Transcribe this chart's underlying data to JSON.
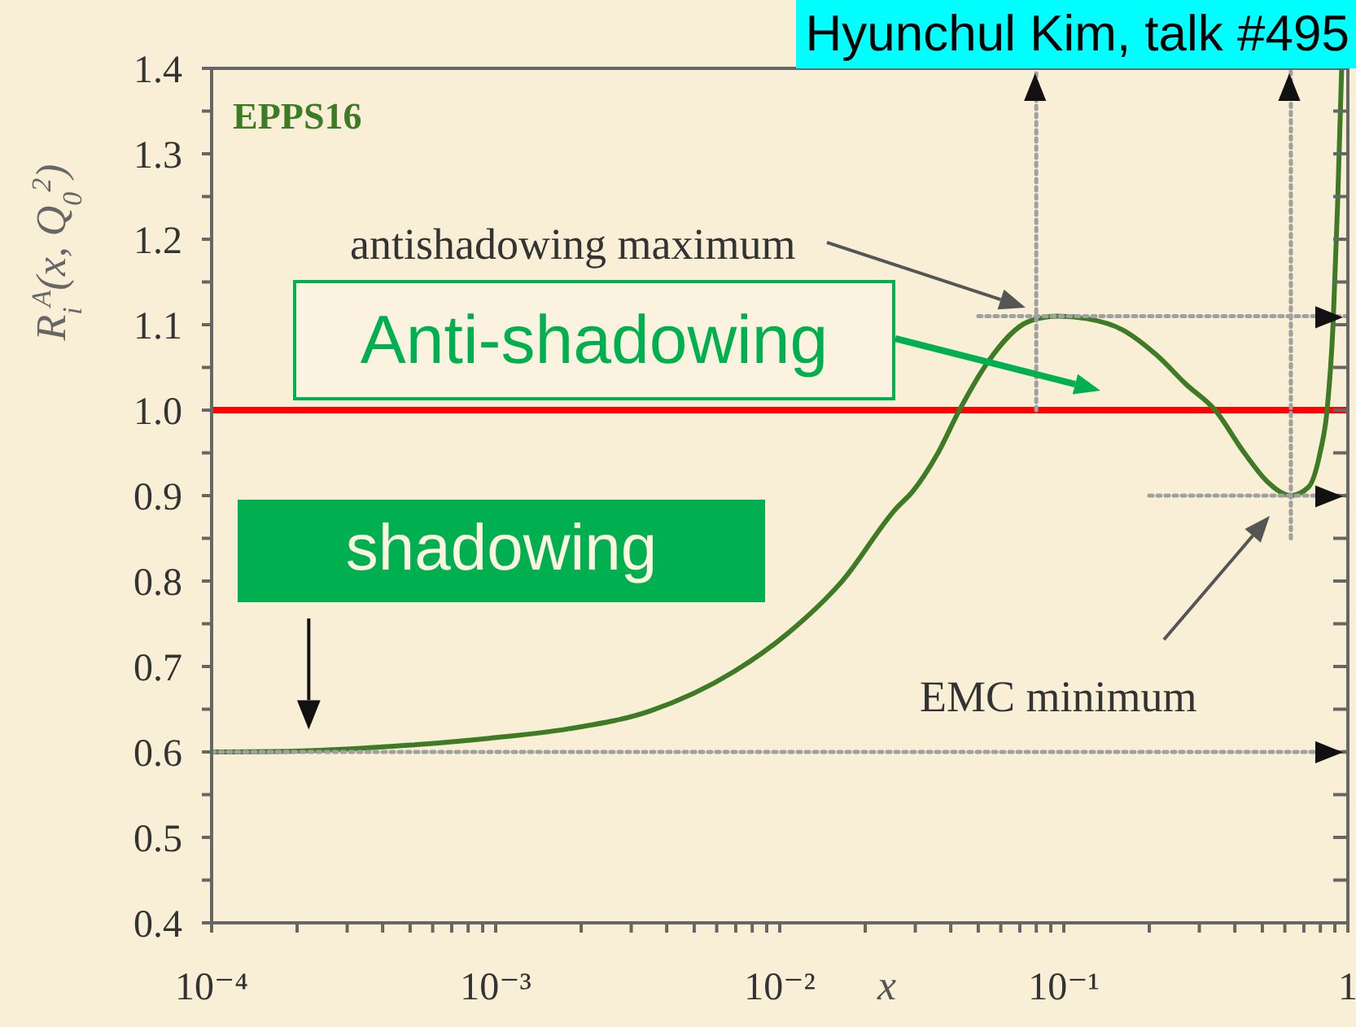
{
  "chart_data": {
    "type": "line",
    "xlabel": "x",
    "ylabel": "R$_{i}$$^{A}$(x, Q$_{0}$$^{2}$)",
    "xlim": [
      0.0001,
      1
    ],
    "ylim": [
      0.4,
      1.4
    ],
    "log": "x",
    "xticks": [
      {
        "value": 0.0001,
        "label": "10⁻⁴"
      },
      {
        "value": 0.0002,
        "label": null
      },
      {
        "value": 0.0003,
        "label": null
      },
      {
        "value": 0.0004,
        "label": null
      },
      {
        "value": 0.0005,
        "label": null
      },
      {
        "value": 0.0006,
        "label": null
      },
      {
        "value": 0.0007,
        "label": null
      },
      {
        "value": 0.0008,
        "label": null
      },
      {
        "value": 0.0009,
        "label": null
      },
      {
        "value": 0.001,
        "label": "10⁻³"
      },
      {
        "value": 0.002,
        "label": null
      },
      {
        "value": 0.003,
        "label": null
      },
      {
        "value": 0.004,
        "label": null
      },
      {
        "value": 0.005,
        "label": null
      },
      {
        "value": 0.006,
        "label": null
      },
      {
        "value": 0.007,
        "label": null
      },
      {
        "value": 0.008,
        "label": null
      },
      {
        "value": 0.009,
        "label": null
      },
      {
        "value": 0.01,
        "label": "10⁻²"
      },
      {
        "value": 0.02,
        "label": null
      },
      {
        "value": 0.03,
        "label": null
      },
      {
        "value": 0.04,
        "label": null
      },
      {
        "value": 0.05,
        "label": null
      },
      {
        "value": 0.06,
        "label": null
      },
      {
        "value": 0.07,
        "label": null
      },
      {
        "value": 0.08,
        "label": null
      },
      {
        "value": 0.09,
        "label": null
      },
      {
        "value": 0.1,
        "label": "10⁻¹"
      },
      {
        "value": 0.2,
        "label": null
      },
      {
        "value": 0.3,
        "label": null
      },
      {
        "value": 0.4,
        "label": null
      },
      {
        "value": 0.5,
        "label": null
      },
      {
        "value": 0.6,
        "label": null
      },
      {
        "value": 0.7,
        "label": null
      },
      {
        "value": 0.8,
        "label": null
      },
      {
        "value": 0.9,
        "label": null
      },
      1
    ],
    "yticks": [
      0.4,
      {
        "value": 0.45,
        "label": null
      },
      0.5,
      {
        "value": 0.55,
        "label": null
      },
      0.6,
      {
        "value": 0.65,
        "label": null
      },
      0.7,
      {
        "value": 0.75,
        "label": null
      },
      0.8,
      {
        "value": 0.85,
        "label": null
      },
      0.9,
      {
        "value": 0.95,
        "label": null
      },
      {
        "value": 1,
        "label": "1.0"
      },
      {
        "value": 1.05,
        "label": null
      },
      1.1,
      {
        "value": 1.15,
        "label": null
      },
      1.2,
      {
        "value": 1.25,
        "label": null
      },
      1.3,
      {
        "value": 1.35,
        "label": null
      },
      1.4
    ],
    "series": [
      {
        "color": "#3d7b25",
        "x": [
          0.0001,
          0.0002,
          0.0005,
          0.00095,
          0.0018,
          0.0035,
          0.0069,
          0.0106,
          0.0166,
          0.0257,
          0.0294,
          0.0358,
          0.0429,
          0.0542,
          0.0755,
          0.0955,
          0.121,
          0.161,
          0.213,
          0.27,
          0.341,
          0.432,
          0.522,
          0.63,
          0.727,
          0.798,
          0.845,
          0.887,
          0.92,
          0.951
        ],
        "values": [
          0.6,
          0.601,
          0.608,
          0.616,
          0.627,
          0.648,
          0.694,
          0.738,
          0.8,
          0.885,
          0.905,
          0.948,
          1.0,
          1.057,
          1.104,
          1.11,
          1.107,
          1.094,
          1.064,
          1.03,
          1.0,
          0.95,
          0.916,
          0.9,
          0.91,
          0.95,
          1.0,
          1.1,
          1.24,
          1.4
        ]
      },
      {
        "color": "#a0a0a0",
        "line_style": "dotted",
        "x": [
          0.05,
          1
        ],
        "values": [
          1.11,
          1.11
        ]
      },
      {
        "color": "#a0a0a0",
        "line_style": "dotted",
        "x": [
          0.2,
          1
        ],
        "values": [
          0.9,
          0.9
        ]
      },
      {
        "color": "#a0a0a0",
        "line_style": "dotted",
        "x": [
          0.0001,
          1
        ],
        "values": [
          0.6,
          0.6
        ]
      },
      {
        "color": "#a0a0a0",
        "line_style": "dotted",
        "x": [
          0.08,
          0.08
        ],
        "values": [
          1.0,
          1.4
        ]
      },
      {
        "color": "#a0a0a0",
        "line_style": "dotted",
        "x": [
          0.63,
          0.63
        ],
        "values": [
          0.85,
          1.4
        ]
      }
    ],
    "ref_lines": [
      {
        "axis": "y",
        "value": 1.0,
        "color": "#ff0000"
      }
    ],
    "annotations": [
      "Hyunchul Kim, talk #495",
      "EPPS16",
      "antishadowing maximum",
      "EMC minimum",
      "Anti-shadowing",
      {
        "text": "shadowing",
        "x": 0.00022,
        "y": 0.6
      }
    ]
  }
}
